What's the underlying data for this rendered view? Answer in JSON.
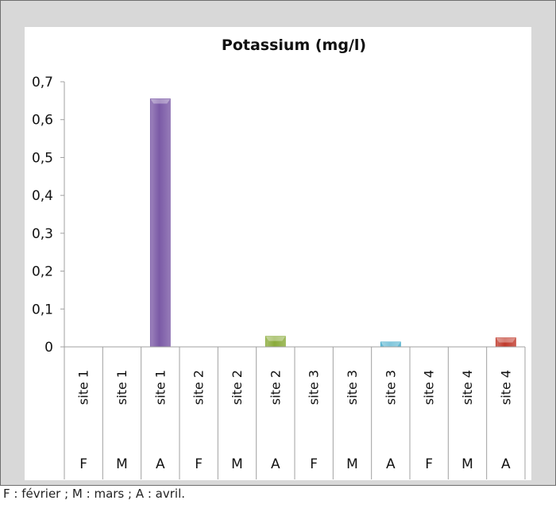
{
  "chart_data": {
    "type": "bar",
    "title": "Potassium (mg/l)",
    "xlabel": "",
    "ylabel": "",
    "ylim": [
      0,
      0.7
    ],
    "yticks": [
      0,
      0.1,
      0.2,
      0.3,
      0.4,
      0.5,
      0.6,
      0.7
    ],
    "ytick_labels": [
      "0",
      "0,1",
      "0,2",
      "0,3",
      "0,4",
      "0,5",
      "0,6",
      "0,7"
    ],
    "grid": false,
    "legend": "none",
    "categories": [
      {
        "site": "site 1",
        "month": "F"
      },
      {
        "site": "site 1",
        "month": "M"
      },
      {
        "site": "site 1",
        "month": "A"
      },
      {
        "site": "site 2",
        "month": "F"
      },
      {
        "site": "site 2",
        "month": "M"
      },
      {
        "site": "site 2",
        "month": "A"
      },
      {
        "site": "site 3",
        "month": "F"
      },
      {
        "site": "site 3",
        "month": "M"
      },
      {
        "site": "site 3",
        "month": "A"
      },
      {
        "site": "site 4",
        "month": "F"
      },
      {
        "site": "site 4",
        "month": "M"
      },
      {
        "site": "site 4",
        "month": "A"
      }
    ],
    "values": [
      0,
      0,
      0.655,
      0,
      0,
      0.028,
      0,
      0,
      0.013,
      0,
      0,
      0.024
    ],
    "colors": [
      "#7b5aa6",
      "#7b5aa6",
      "#7b5aa6",
      "#8aab3a",
      "#8aab3a",
      "#8aab3a",
      "#3fa9c9",
      "#3fa9c9",
      "#3fa9c9",
      "#c0392b",
      "#c0392b",
      "#c0392b"
    ]
  },
  "footnote": "F : février ; M : mars ; A : avril."
}
